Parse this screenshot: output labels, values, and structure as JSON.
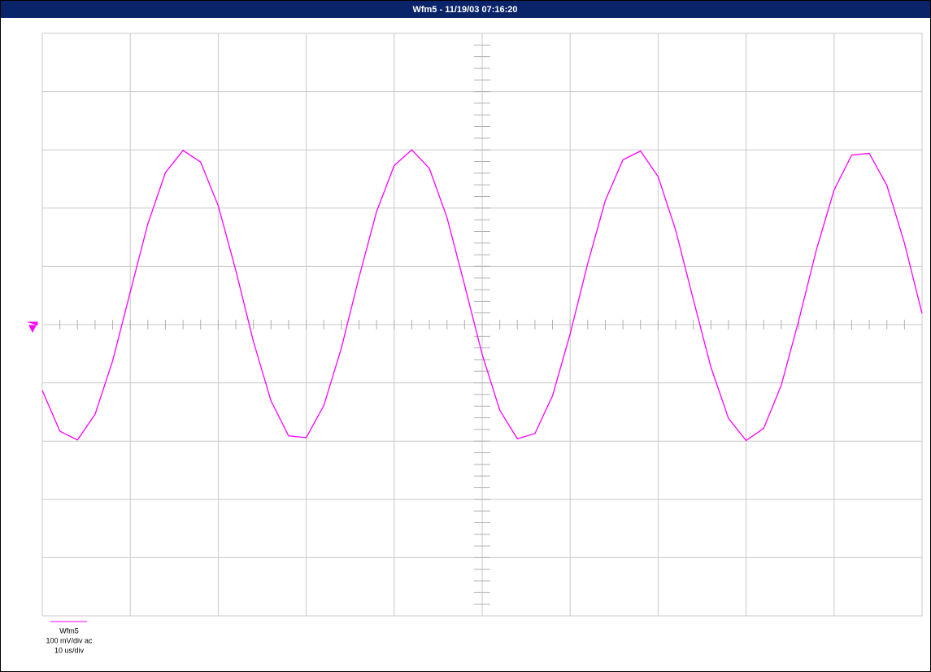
{
  "chart_data": {
    "type": "line",
    "title": "Wfm5 - 11/19/03 07:16:20",
    "x": [
      0,
      2,
      4,
      6,
      8,
      10,
      12,
      14,
      16,
      18,
      20,
      22,
      24,
      26,
      28,
      30,
      32,
      34,
      36,
      38,
      40,
      42,
      44,
      46,
      48,
      50,
      52,
      54,
      56,
      58,
      60,
      62,
      64,
      66,
      68,
      70,
      72,
      74,
      76,
      78,
      80,
      82,
      84,
      86,
      88,
      90,
      92,
      94,
      96,
      98,
      100
    ],
    "series": [
      {
        "name": "Wfm5",
        "color": "#ff00ff",
        "values": [
          -113,
          -183,
          -198,
          -154,
          -62,
          56,
          173,
          261,
          299,
          279,
          204,
          93,
          -29,
          -131,
          -191,
          -194,
          -139,
          -40,
          81,
          194,
          273,
          300,
          268,
          184,
          68,
          -51,
          -147,
          -196,
          -187,
          -122,
          -16,
          105,
          213,
          283,
          298,
          254,
          162,
          43,
          -73,
          -161,
          -199,
          -178,
          -104,
          8,
          129,
          231,
          291,
          294,
          239,
          140,
          19
        ]
      }
    ],
    "annotations": [
      "100 mV/div ac",
      "10 us/div"
    ],
    "xlim": [
      0,
      100
    ],
    "xticks": [
      0,
      10,
      20,
      30,
      40,
      50,
      60,
      70,
      80,
      90,
      100
    ],
    "ylim": [
      -500,
      500
    ],
    "yticks": [
      -500,
      -400,
      -300,
      -200,
      -100,
      0,
      100,
      200,
      300,
      400,
      500
    ],
    "grid": true
  }
}
